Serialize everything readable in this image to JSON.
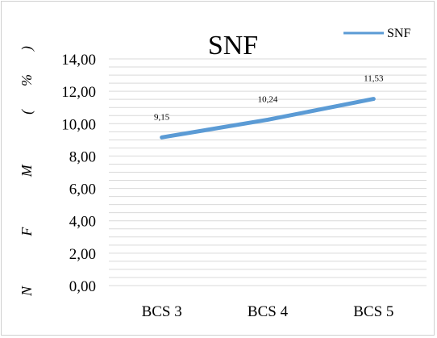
{
  "chart_data": {
    "type": "line",
    "title": "SNF",
    "ylabel": "N F M (%)",
    "categories": [
      "BCS 3",
      "BCS 4",
      "BCS 5"
    ],
    "series": [
      {
        "name": "SNF",
        "values": [
          9.15,
          10.24,
          11.53
        ],
        "labels": [
          "9,15",
          "10,24",
          "11,53"
        ]
      }
    ],
    "ylim": [
      0,
      14
    ],
    "yticks": [
      "0,00",
      "2,00",
      "4,00",
      "6,00",
      "8,00",
      "10,00",
      "12,00",
      "14,00"
    ],
    "grid": true,
    "legend": "top-right",
    "colors": {
      "series": "#5b9bd5",
      "grid": "#d9d9d9"
    }
  }
}
